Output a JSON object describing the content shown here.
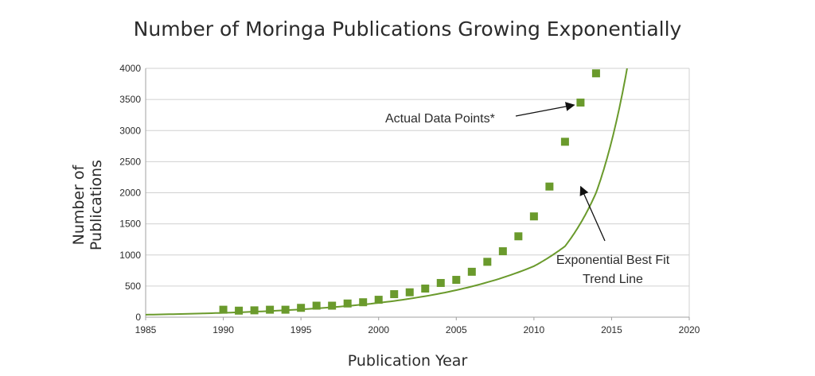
{
  "chart_data": {
    "type": "scatter",
    "title": "Number of Moringa Publications Growing Exponentially",
    "xlabel": "Publication Year",
    "ylabel": "Number of Publications",
    "xlim": [
      1985,
      2020
    ],
    "ylim": [
      0,
      4000
    ],
    "x_ticks": [
      1985,
      1990,
      1995,
      2000,
      2005,
      2010,
      2015,
      2020
    ],
    "y_ticks": [
      0,
      500,
      1000,
      1500,
      2000,
      2500,
      3000,
      3500,
      4000
    ],
    "grid": "horizontal",
    "colors": {
      "series": "#6a9a2c",
      "grid": "#d0d0d0",
      "axis": "#a0a0a0",
      "text": "#2b2b2b"
    },
    "series": [
      {
        "kind": "points",
        "marker": "square",
        "x": [
          1990,
          1991,
          1992,
          1993,
          1994,
          1995,
          1996,
          1997,
          1998,
          1999,
          2000,
          2001,
          2002,
          2003,
          2004,
          2005,
          2006,
          2007,
          2008,
          2009,
          2010,
          2011,
          2012,
          2013,
          2014
        ],
        "y": [
          120,
          105,
          110,
          120,
          120,
          150,
          185,
          185,
          220,
          240,
          280,
          370,
          400,
          460,
          550,
          600,
          730,
          890,
          1060,
          1300,
          1620,
          2100,
          2820,
          3450,
          3920
        ]
      },
      {
        "kind": "trend",
        "model": "exponential",
        "x": [
          1985,
          1990,
          1995,
          2000,
          2005,
          2010,
          2012,
          2014,
          2016
        ],
        "y": [
          40,
          70,
          125,
          230,
          435,
          820,
          1140,
          2000,
          4000
        ]
      }
    ],
    "annotations": [
      {
        "text": "Actual Data Points*",
        "points_to": {
          "x": 2013,
          "y": 3450
        }
      },
      {
        "lines": [
          "Exponential Best Fit",
          "Trend Line"
        ],
        "points_to": {
          "x": 2012.5,
          "y": 2200
        }
      }
    ]
  }
}
